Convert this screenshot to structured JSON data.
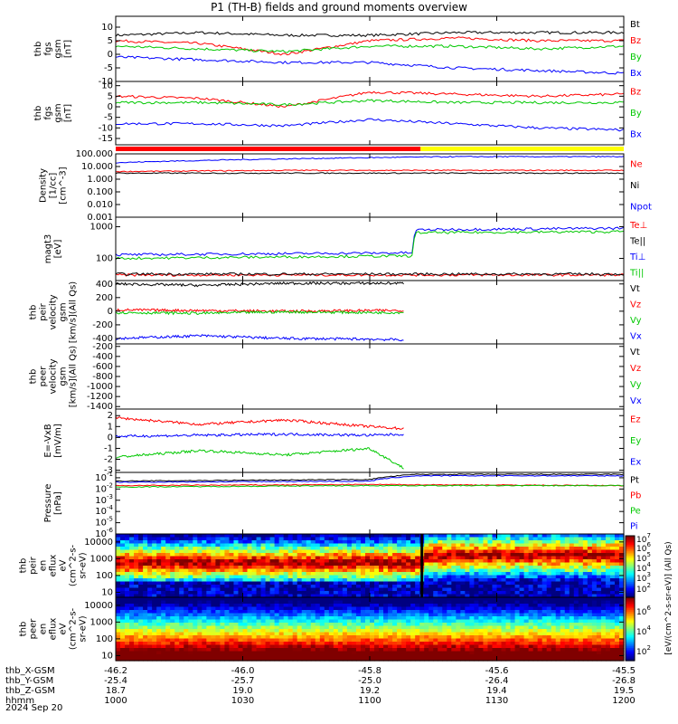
{
  "title": "P1 (TH-B) fields and ground moments overview",
  "date": "2024 Sep 20",
  "colors": {
    "black": "#000000",
    "red": "#ff0000",
    "green": "#00c800",
    "blue": "#0000ff",
    "yellow": "#ffff00"
  },
  "time_ticks": [
    "1000",
    "1030",
    "1100",
    "1130",
    "1200"
  ],
  "ephemeris": {
    "labels": [
      "thb_X-GSM",
      "thb_Y-GSM",
      "thb_Z-GSM",
      "hhmm"
    ],
    "values": [
      [
        "-46.2",
        "-46.0",
        "-45.8",
        "-45.6",
        "-45.5"
      ],
      [
        "-25.4",
        "-25.7",
        "-25.0",
        "-26.4",
        "-26.8"
      ],
      [
        "18.7",
        "19.0",
        "19.2",
        "19.4",
        "19.5"
      ],
      [
        "1000",
        "1030",
        "1100",
        "1130",
        "1200"
      ]
    ]
  },
  "chart_data": [
    {
      "type": "line",
      "ylabel": [
        "thb",
        "fgs",
        "gsm",
        "[nT]"
      ],
      "ylim": [
        -10,
        14
      ],
      "yticks": [
        "10",
        "5",
        "0",
        "-5",
        "-10"
      ],
      "legend": [
        "Bt",
        "Bz",
        "By",
        "Bx"
      ],
      "series": [
        {
          "name": "Bt",
          "color": "black",
          "x": [
            0,
            20,
            40,
            60,
            80,
            100,
            120
          ],
          "values": [
            7,
            8,
            7,
            7,
            8,
            8,
            8
          ]
        },
        {
          "name": "Bz",
          "color": "red",
          "x": [
            0,
            20,
            40,
            60,
            80,
            100,
            120
          ],
          "values": [
            5,
            4,
            0,
            5,
            6,
            5,
            5
          ]
        },
        {
          "name": "By",
          "color": "green",
          "x": [
            0,
            20,
            40,
            60,
            80,
            100,
            120
          ],
          "values": [
            3,
            2,
            1,
            3,
            3,
            2,
            3
          ]
        },
        {
          "name": "Bx",
          "color": "blue",
          "x": [
            0,
            20,
            40,
            60,
            80,
            100,
            120
          ],
          "values": [
            -1,
            -2,
            -3,
            -3,
            -5,
            -6,
            -7
          ]
        }
      ]
    },
    {
      "type": "line",
      "ylabel": [
        "thb",
        "fgs",
        "gsm",
        "[nT]"
      ],
      "ylim": [
        -18,
        12
      ],
      "yticks": [
        "10",
        "5",
        "0",
        "-5",
        "-10",
        "-15"
      ],
      "legend": [
        "Bz",
        "By",
        "Bx"
      ],
      "series": [
        {
          "name": "Bz",
          "color": "red",
          "x": [
            0,
            20,
            40,
            60,
            80,
            100,
            120
          ],
          "values": [
            5,
            4,
            0,
            7,
            6,
            5,
            6
          ]
        },
        {
          "name": "By",
          "color": "green",
          "x": [
            0,
            20,
            40,
            60,
            80,
            100,
            120
          ],
          "values": [
            2,
            2,
            1,
            3,
            2,
            2,
            2
          ]
        },
        {
          "name": "Bx",
          "color": "blue",
          "x": [
            0,
            20,
            40,
            60,
            80,
            100,
            120
          ],
          "values": [
            -8,
            -8,
            -9,
            -6,
            -8,
            -10,
            -11
          ]
        }
      ]
    },
    {
      "type": "line",
      "scale": "log",
      "ylabel": [
        "Density",
        "[1/cc]",
        "[cm^-3]"
      ],
      "ylim": [
        0.001,
        100
      ],
      "yticks": [
        "100.000",
        "10.000",
        "1.000",
        "0.100",
        "0.010",
        "0.001"
      ],
      "legend": [
        "Ne",
        "Ni",
        "Npot"
      ],
      "series": [
        {
          "name": "Ne",
          "color": "red",
          "x": [
            0,
            40,
            60,
            80,
            100,
            120
          ],
          "values": [
            4,
            5,
            5,
            5,
            5,
            5
          ]
        },
        {
          "name": "Ni",
          "color": "black",
          "x": [
            0,
            40,
            60,
            80,
            100,
            120
          ],
          "values": [
            3,
            3,
            3,
            3,
            3,
            3
          ]
        },
        {
          "name": "Npot",
          "color": "blue",
          "x": [
            0,
            40,
            60,
            80,
            100,
            120
          ],
          "values": [
            20,
            40,
            50,
            60,
            60,
            60
          ]
        }
      ]
    },
    {
      "type": "line",
      "scale": "log",
      "ylabel": [
        "magt3",
        "[eV]"
      ],
      "ylim": [
        20,
        2000
      ],
      "yticks": [
        "1000",
        "100"
      ],
      "legend": [
        "Te⊥",
        "Te||",
        "Ti⊥",
        "Ti||"
      ],
      "series": [
        {
          "name": "Te⊥",
          "color": "red",
          "x": [
            0,
            120
          ],
          "values": [
            30,
            30
          ]
        },
        {
          "name": "Te||",
          "color": "black",
          "x": [
            0,
            120
          ],
          "values": [
            32,
            32
          ]
        },
        {
          "name": "Ti⊥",
          "color": "blue",
          "x": [
            0,
            70,
            71,
            120
          ],
          "values": [
            130,
            150,
            800,
            900
          ]
        },
        {
          "name": "Ti||",
          "color": "green",
          "x": [
            0,
            70,
            71,
            120
          ],
          "values": [
            100,
            120,
            650,
            700
          ]
        }
      ]
    },
    {
      "type": "line",
      "ylabel": [
        "thb",
        "peir",
        "velocity",
        "gsm",
        "[km/s](All Qs)"
      ],
      "ylim": [
        -480,
        450
      ],
      "yticks": [
        "400",
        "200",
        "0",
        "-200",
        "-400"
      ],
      "legend": [
        "Vt",
        "Vz",
        "Vy",
        "Vx"
      ],
      "series": [
        {
          "name": "Vt",
          "color": "black",
          "x": [
            0,
            20,
            40,
            60,
            68
          ],
          "values": [
            400,
            380,
            410,
            410,
            410
          ]
        },
        {
          "name": "Vz",
          "color": "red",
          "x": [
            0,
            20,
            40,
            60,
            68
          ],
          "values": [
            20,
            10,
            0,
            10,
            10
          ]
        },
        {
          "name": "Vy",
          "color": "green",
          "x": [
            0,
            20,
            40,
            60,
            68
          ],
          "values": [
            -20,
            -30,
            -10,
            -20,
            -20
          ]
        },
        {
          "name": "Vx",
          "color": "blue",
          "x": [
            0,
            20,
            40,
            60,
            68
          ],
          "values": [
            -400,
            -360,
            -400,
            -410,
            -420
          ]
        }
      ]
    },
    {
      "type": "line",
      "ylabel": [
        "thb",
        "peer",
        "velocity",
        "gsm",
        "[km/s](All Qs)"
      ],
      "ylim": [
        -1450,
        -150
      ],
      "yticks": [
        "-200",
        "-400",
        "-600",
        "-800",
        "-1000",
        "-1200",
        "-1400"
      ],
      "legend": [
        "Vt",
        "Vz",
        "Vy",
        "Vx"
      ],
      "series": []
    },
    {
      "type": "line",
      "ylabel": [
        "E=-VxB",
        "[mV/m]"
      ],
      "ylim": [
        -3.2,
        2.6
      ],
      "yticks": [
        "2",
        "1",
        "0",
        "-1",
        "-2",
        "-3"
      ],
      "legend": [
        "Ez",
        "Ey",
        "Ex"
      ],
      "series": [
        {
          "name": "Ez",
          "color": "red",
          "x": [
            0,
            20,
            40,
            60,
            68
          ],
          "values": [
            1.8,
            1.2,
            1.6,
            1.0,
            0.8
          ]
        },
        {
          "name": "Ey",
          "color": "green",
          "x": [
            0,
            20,
            40,
            60,
            68
          ],
          "values": [
            -1.8,
            -1.2,
            -1.6,
            -1.0,
            -2.8
          ]
        },
        {
          "name": "Ex",
          "color": "blue",
          "x": [
            0,
            20,
            40,
            60,
            68
          ],
          "values": [
            0.1,
            0.2,
            0.3,
            0.2,
            0.3
          ]
        }
      ]
    },
    {
      "type": "line",
      "scale": "log",
      "ylabel": [
        "Pressure",
        "[nPa]"
      ],
      "ylim": [
        1e-06,
        0.3
      ],
      "yticks": [
        "10^-1",
        "10^-2",
        "10^-3",
        "10^-4",
        "10^-5",
        "10^-6"
      ],
      "legend": [
        "Pt",
        "Pb",
        "Pe",
        "Pi"
      ],
      "series": [
        {
          "name": "Pt",
          "color": "black",
          "x": [
            0,
            60,
            71,
            120
          ],
          "values": [
            0.05,
            0.07,
            0.2,
            0.2
          ]
        },
        {
          "name": "Pb",
          "color": "red",
          "x": [
            0,
            60,
            120
          ],
          "values": [
            0.02,
            0.025,
            0.02
          ]
        },
        {
          "name": "Pe",
          "color": "green",
          "x": [
            0,
            60,
            120
          ],
          "values": [
            0.015,
            0.02,
            0.02
          ]
        },
        {
          "name": "Pi",
          "color": "blue",
          "x": [
            0,
            60,
            71,
            120
          ],
          "values": [
            0.04,
            0.05,
            0.15,
            0.15
          ]
        }
      ]
    },
    {
      "type": "heatmap",
      "ylabel": [
        "thb",
        "peir",
        "en",
        "eflux",
        "eV",
        "(cm^2-s-",
        "sr-eV)"
      ],
      "yticks": [
        "10000",
        "1000",
        "100",
        "10"
      ],
      "ylim": [
        5,
        30000
      ],
      "scale": "log"
    },
    {
      "type": "heatmap",
      "ylabel": [
        "thb",
        "peer",
        "en",
        "eflux",
        "eV",
        "(cm^2-s-",
        "sr-eV)"
      ],
      "yticks": [
        "10000",
        "1000",
        "100",
        "10"
      ],
      "ylim": [
        5,
        30000
      ],
      "scale": "log"
    }
  ],
  "colorbar": {
    "ticks": [
      "10^7",
      "10^6",
      "10^5",
      "10^4",
      "10^3",
      "10^2",
      "10^6",
      "10^4",
      "10^2"
    ],
    "label": "[eV/(cm^2-s-sr-eV)] (All Qs)"
  }
}
